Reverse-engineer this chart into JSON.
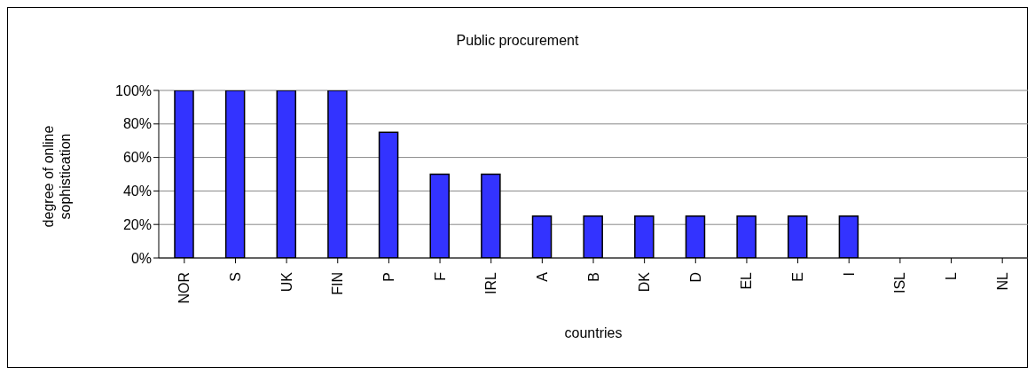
{
  "chart_data": {
    "type": "bar",
    "title": "Public procurement",
    "xlabel": "countries",
    "ylabel": "degree of online sophistication",
    "categories": [
      "NOR",
      "S",
      "UK",
      "FIN",
      "P",
      "F",
      "IRL",
      "A",
      "B",
      "DK",
      "D",
      "EL",
      "E",
      "I",
      "ISL",
      "L",
      "NL"
    ],
    "values": [
      100,
      100,
      100,
      100,
      75,
      50,
      50,
      25,
      25,
      25,
      25,
      25,
      25,
      25,
      0,
      0,
      0
    ],
    "color": "#3333ff",
    "ylim": [
      0,
      100
    ],
    "yticks": [
      {
        "value": 0,
        "label": "0%"
      },
      {
        "value": 20,
        "label": "20%"
      },
      {
        "value": 40,
        "label": "40%"
      },
      {
        "value": 60,
        "label": "60%"
      },
      {
        "value": 80,
        "label": "80%"
      },
      {
        "value": 100,
        "label": "100%"
      }
    ],
    "grid": "y"
  }
}
